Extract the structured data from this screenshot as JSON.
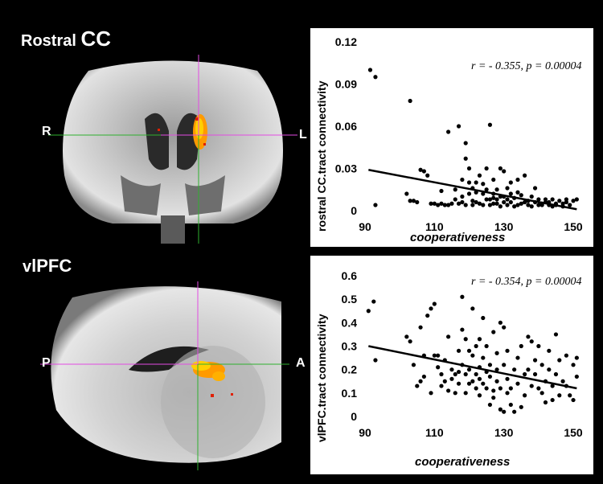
{
  "panels": [
    {
      "section_label": "Rostral",
      "section_label_big": "CC",
      "orient_left": "R",
      "orient_right": "L"
    },
    {
      "section_label": "v",
      "section_label_big": "lPFC",
      "orient_left": "P",
      "orient_right": "A"
    }
  ],
  "chart_data": [
    {
      "type": "scatter",
      "xlabel": "cooperativeness",
      "ylabel": "rostral CC.tract connectivity",
      "annotation": "r = - 0.355, p = 0.00004",
      "xlim": [
        90,
        153
      ],
      "ylim": [
        0,
        0.12
      ],
      "xticks": [
        90,
        110,
        130,
        150
      ],
      "xtick_labels": [
        "90",
        "110",
        "130",
        "150"
      ],
      "yticks": [
        0,
        0.03,
        0.06,
        0.09,
        0.12
      ],
      "ytick_labels": [
        "0",
        "0.03",
        "0.06",
        "0.09",
        "0.12"
      ],
      "fit_line": {
        "x": [
          91,
          151
        ],
        "y": [
          0.029,
          0.001
        ]
      },
      "points": [
        [
          91.5,
          0.1
        ],
        [
          93,
          0.095
        ],
        [
          93,
          0.004
        ],
        [
          103,
          0.078
        ],
        [
          102,
          0.012
        ],
        [
          103,
          0.007
        ],
        [
          104,
          0.007
        ],
        [
          105,
          0.006
        ],
        [
          106,
          0.029
        ],
        [
          107,
          0.028
        ],
        [
          108,
          0.025
        ],
        [
          109,
          0.005
        ],
        [
          110,
          0.005
        ],
        [
          111,
          0.004
        ],
        [
          112,
          0.005
        ],
        [
          113,
          0.004
        ],
        [
          114,
          0.056
        ],
        [
          114,
          0.004
        ],
        [
          115,
          0.005
        ],
        [
          116,
          0.008
        ],
        [
          116,
          0.015
        ],
        [
          117,
          0.06
        ],
        [
          117,
          0.005
        ],
        [
          118,
          0.01
        ],
        [
          118,
          0.006
        ],
        [
          119,
          0.037
        ],
        [
          119,
          0.048
        ],
        [
          119,
          0.004
        ],
        [
          120,
          0.03
        ],
        [
          120,
          0.012
        ],
        [
          120,
          0.02
        ],
        [
          121,
          0.004
        ],
        [
          121,
          0.007
        ],
        [
          122,
          0.02
        ],
        [
          122,
          0.013
        ],
        [
          122,
          0.006
        ],
        [
          123,
          0.025
        ],
        [
          123,
          0.005
        ],
        [
          124,
          0.004
        ],
        [
          124,
          0.012
        ],
        [
          125,
          0.03
        ],
        [
          125,
          0.015
        ],
        [
          125,
          0.008
        ],
        [
          126,
          0.061
        ],
        [
          126,
          0.008
        ],
        [
          126,
          0.004
        ],
        [
          127,
          0.022
        ],
        [
          127,
          0.005
        ],
        [
          127,
          0.012
        ],
        [
          128,
          0.008
        ],
        [
          128,
          0.005
        ],
        [
          128,
          0.015
        ],
        [
          129,
          0.03
        ],
        [
          129,
          0.003
        ],
        [
          130,
          0.028
        ],
        [
          130,
          0.01
        ],
        [
          130,
          0.006
        ],
        [
          131,
          0.008
        ],
        [
          131,
          0.004
        ],
        [
          132,
          0.02
        ],
        [
          132,
          0.006
        ],
        [
          132,
          0.012
        ],
        [
          133,
          0.003
        ],
        [
          133,
          0.009
        ],
        [
          134,
          0.004
        ],
        [
          134,
          0.013
        ],
        [
          135,
          0.011
        ],
        [
          135,
          0.005
        ],
        [
          136,
          0.025
        ],
        [
          136,
          0.006
        ],
        [
          137,
          0.007
        ],
        [
          137,
          0.004
        ],
        [
          138,
          0.01
        ],
        [
          138,
          0.003
        ],
        [
          139,
          0.016
        ],
        [
          139,
          0.006
        ],
        [
          140,
          0.004
        ],
        [
          140,
          0.008
        ],
        [
          141,
          0.005
        ],
        [
          141,
          0.004
        ],
        [
          142,
          0.006
        ],
        [
          142,
          0.008
        ],
        [
          143,
          0.004
        ],
        [
          143,
          0.006
        ],
        [
          144,
          0.003
        ],
        [
          144,
          0.008
        ],
        [
          145,
          0.005
        ],
        [
          145,
          0.004
        ],
        [
          146,
          0.007
        ],
        [
          147,
          0.005
        ],
        [
          147,
          0.003
        ],
        [
          148,
          0.008
        ],
        [
          148,
          0.006
        ],
        [
          149,
          0.004
        ],
        [
          150,
          0.007
        ],
        [
          151,
          0.008
        ],
        [
          112,
          0.014
        ],
        [
          118,
          0.022
        ],
        [
          121,
          0.016
        ],
        [
          124,
          0.019
        ],
        [
          127,
          0.009
        ],
        [
          129,
          0.01
        ],
        [
          131,
          0.016
        ],
        [
          134,
          0.022
        ]
      ]
    },
    {
      "type": "scatter",
      "xlabel": "cooperativeness",
      "ylabel": "vlPFC.tract  connectivity",
      "annotation": "r = - 0.354, p = 0.00004",
      "xlim": [
        90,
        153
      ],
      "ylim": [
        0,
        0.6
      ],
      "xticks": [
        90,
        110,
        130,
        150
      ],
      "xtick_labels": [
        "90",
        "110",
        "130",
        "150"
      ],
      "yticks": [
        0,
        0.1,
        0.2,
        0.3,
        0.4,
        0.5,
        0.6
      ],
      "ytick_labels": [
        "0",
        "0.1",
        "0.2",
        "0.3",
        "0.4",
        "0.5",
        "0.6"
      ],
      "fit_line": {
        "x": [
          91,
          151
        ],
        "y": [
          0.3,
          0.12
        ]
      },
      "points": [
        [
          91,
          0.45
        ],
        [
          92.5,
          0.49
        ],
        [
          93,
          0.24
        ],
        [
          102,
          0.34
        ],
        [
          103,
          0.32
        ],
        [
          104,
          0.22
        ],
        [
          105,
          0.13
        ],
        [
          106,
          0.15
        ],
        [
          106,
          0.38
        ],
        [
          107,
          0.17
        ],
        [
          108,
          0.43
        ],
        [
          109,
          0.46
        ],
        [
          109,
          0.1
        ],
        [
          110,
          0.48
        ],
        [
          110,
          0.26
        ],
        [
          111,
          0.21
        ],
        [
          112,
          0.13
        ],
        [
          112,
          0.18
        ],
        [
          113,
          0.24
        ],
        [
          113,
          0.15
        ],
        [
          114,
          0.34
        ],
        [
          114,
          0.11
        ],
        [
          115,
          0.2
        ],
        [
          115,
          0.16
        ],
        [
          116,
          0.1
        ],
        [
          116,
          0.18
        ],
        [
          117,
          0.19
        ],
        [
          117,
          0.14
        ],
        [
          118,
          0.51
        ],
        [
          118,
          0.37
        ],
        [
          118,
          0.22
        ],
        [
          119,
          0.18
        ],
        [
          119,
          0.33
        ],
        [
          119,
          0.1
        ],
        [
          120,
          0.28
        ],
        [
          120,
          0.2
        ],
        [
          120,
          0.14
        ],
        [
          121,
          0.15
        ],
        [
          121,
          0.26
        ],
        [
          121,
          0.46
        ],
        [
          122,
          0.18
        ],
        [
          122,
          0.12
        ],
        [
          122,
          0.3
        ],
        [
          123,
          0.21
        ],
        [
          123,
          0.16
        ],
        [
          123,
          0.09
        ],
        [
          124,
          0.42
        ],
        [
          124,
          0.14
        ],
        [
          124,
          0.25
        ],
        [
          125,
          0.3
        ],
        [
          125,
          0.19
        ],
        [
          125,
          0.12
        ],
        [
          126,
          0.05
        ],
        [
          126,
          0.17
        ],
        [
          126,
          0.22
        ],
        [
          127,
          0.36
        ],
        [
          127,
          0.11
        ],
        [
          127,
          0.08
        ],
        [
          128,
          0.2
        ],
        [
          128,
          0.15
        ],
        [
          128,
          0.27
        ],
        [
          129,
          0.4
        ],
        [
          129,
          0.12
        ],
        [
          129,
          0.03
        ],
        [
          130,
          0.38
        ],
        [
          130,
          0.22
        ],
        [
          130,
          0.02
        ],
        [
          131,
          0.16
        ],
        [
          131,
          0.28
        ],
        [
          131,
          0.1
        ],
        [
          132,
          0.12
        ],
        [
          132,
          0.05
        ],
        [
          133,
          0.02
        ],
        [
          133,
          0.2
        ],
        [
          134,
          0.25
        ],
        [
          134,
          0.14
        ],
        [
          135,
          0.04
        ],
        [
          135,
          0.3
        ],
        [
          136,
          0.18
        ],
        [
          136,
          0.09
        ],
        [
          137,
          0.34
        ],
        [
          137,
          0.2
        ],
        [
          138,
          0.32
        ],
        [
          138,
          0.13
        ],
        [
          139,
          0.18
        ],
        [
          139,
          0.24
        ],
        [
          140,
          0.12
        ],
        [
          140,
          0.3
        ],
        [
          141,
          0.1
        ],
        [
          141,
          0.22
        ],
        [
          142,
          0.15
        ],
        [
          142,
          0.06
        ],
        [
          143,
          0.2
        ],
        [
          143,
          0.28
        ],
        [
          144,
          0.13
        ],
        [
          144,
          0.07
        ],
        [
          145,
          0.18
        ],
        [
          145,
          0.35
        ],
        [
          146,
          0.24
        ],
        [
          146,
          0.09
        ],
        [
          147,
          0.15
        ],
        [
          148,
          0.26
        ],
        [
          148,
          0.13
        ],
        [
          149,
          0.09
        ],
        [
          150,
          0.07
        ],
        [
          150,
          0.22
        ],
        [
          151,
          0.25
        ],
        [
          151,
          0.17
        ],
        [
          107,
          0.26
        ],
        [
          111,
          0.26
        ],
        [
          117,
          0.28
        ],
        [
          123,
          0.33
        ]
      ]
    }
  ]
}
